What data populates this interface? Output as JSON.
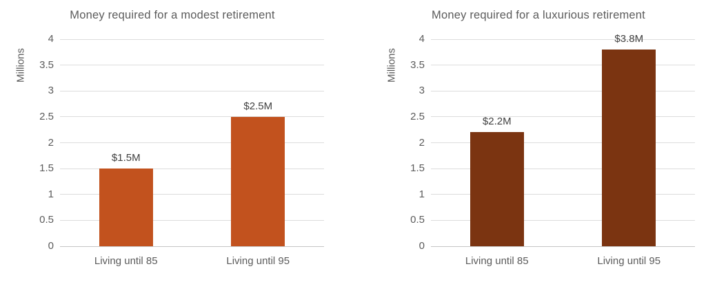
{
  "page": {
    "background": "#ffffff"
  },
  "colors": {
    "title_text": "#5B5B5B",
    "tick_text": "#5B5B5B",
    "data_label_text": "#404040",
    "gridline": "#DCDCDC",
    "axis_line": "#C4C4C4"
  },
  "chart_data": [
    {
      "type": "bar",
      "title": "Money required for a modest retirement",
      "ylabel": "Millions",
      "xlabel": "",
      "categories": [
        "Living until 85",
        "Living until 95"
      ],
      "values": [
        1.5,
        2.5
      ],
      "data_labels": [
        "$1.5M",
        "$2.5M"
      ],
      "yticks": [
        0,
        0.5,
        1,
        1.5,
        2,
        2.5,
        3,
        3.5,
        4
      ],
      "ylim": [
        0,
        4
      ],
      "bar_color": "#C2521E",
      "grid": true,
      "legend": "none"
    },
    {
      "type": "bar",
      "title": "Money required for a luxurious retirement",
      "ylabel": "Millions",
      "xlabel": "",
      "categories": [
        "Living until 85",
        "Living until 95"
      ],
      "values": [
        2.2,
        3.8
      ],
      "data_labels": [
        "$2.2M",
        "$3.8M"
      ],
      "yticks": [
        0,
        0.5,
        1,
        1.5,
        2,
        2.5,
        3,
        3.5,
        4
      ],
      "ylim": [
        0,
        4
      ],
      "bar_color": "#7B3411",
      "grid": true,
      "legend": "none"
    }
  ]
}
